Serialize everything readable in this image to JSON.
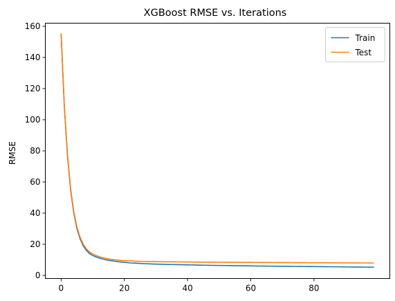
{
  "chart_data": {
    "type": "line",
    "title": "XGBoost RMSE vs. Iterations",
    "xlabel": "",
    "ylabel": "RMSE",
    "xlim": [
      -5,
      104
    ],
    "ylim": [
      -2,
      162
    ],
    "x_ticks": [
      0,
      20,
      40,
      60,
      80
    ],
    "y_ticks": [
      0,
      20,
      40,
      60,
      80,
      100,
      120,
      140,
      160
    ],
    "grid": false,
    "legend_position": "top-right",
    "colors": {
      "Train": "#1f77b4",
      "Test": "#ff7f0e"
    },
    "x": [
      0,
      1,
      2,
      3,
      4,
      5,
      6,
      7,
      8,
      9,
      10,
      11,
      12,
      13,
      14,
      15,
      16,
      17,
      18,
      19,
      20,
      21,
      22,
      23,
      24,
      25,
      26,
      27,
      28,
      29,
      30,
      31,
      32,
      33,
      34,
      35,
      36,
      37,
      38,
      39,
      40,
      41,
      42,
      43,
      44,
      45,
      46,
      47,
      48,
      49,
      50,
      51,
      52,
      53,
      54,
      55,
      56,
      57,
      58,
      59,
      60,
      61,
      62,
      63,
      64,
      65,
      66,
      67,
      68,
      69,
      70,
      71,
      72,
      73,
      74,
      75,
      76,
      77,
      78,
      79,
      80,
      81,
      82,
      83,
      84,
      85,
      86,
      87,
      88,
      89,
      90,
      91,
      92,
      93,
      94,
      95,
      96,
      97,
      98,
      99
    ],
    "series": [
      {
        "name": "Train",
        "values": [
          155.0,
          109.0,
          77.0,
          55.0,
          40.0,
          30.0,
          23.5,
          19.0,
          16.0,
          14.0,
          12.8,
          11.9,
          11.2,
          10.6,
          10.1,
          9.7,
          9.4,
          9.1,
          8.8,
          8.6,
          8.4,
          8.2,
          8.0,
          7.9,
          7.8,
          7.7,
          7.6,
          7.5,
          7.4,
          7.3,
          7.25,
          7.2,
          7.15,
          7.1,
          7.05,
          7.0,
          6.95,
          6.9,
          6.85,
          6.8,
          6.76,
          6.72,
          6.68,
          6.64,
          6.6,
          6.56,
          6.52,
          6.48,
          6.45,
          6.42,
          6.39,
          6.36,
          6.33,
          6.3,
          6.27,
          6.24,
          6.21,
          6.18,
          6.15,
          6.12,
          6.09,
          6.06,
          6.03,
          6.0,
          5.98,
          5.96,
          5.94,
          5.92,
          5.9,
          5.88,
          5.86,
          5.84,
          5.82,
          5.8,
          5.78,
          5.76,
          5.74,
          5.72,
          5.7,
          5.68,
          5.66,
          5.64,
          5.62,
          5.6,
          5.58,
          5.56,
          5.54,
          5.52,
          5.5,
          5.48,
          5.46,
          5.44,
          5.42,
          5.4,
          5.38,
          5.36,
          5.34,
          5.32,
          5.3,
          5.28
        ]
      },
      {
        "name": "Test",
        "values": [
          155.5,
          110.0,
          78.0,
          56.0,
          41.0,
          31.0,
          24.5,
          20.0,
          17.0,
          15.0,
          13.8,
          12.8,
          12.1,
          11.5,
          11.0,
          10.6,
          10.3,
          10.0,
          9.8,
          9.6,
          9.5,
          9.4,
          9.3,
          9.2,
          9.1,
          9.05,
          9.0,
          8.95,
          8.9,
          8.85,
          8.82,
          8.79,
          8.76,
          8.74,
          8.72,
          8.7,
          8.68,
          8.66,
          8.64,
          8.62,
          8.6,
          8.58,
          8.56,
          8.54,
          8.52,
          8.5,
          8.49,
          8.48,
          8.47,
          8.46,
          8.45,
          8.44,
          8.43,
          8.42,
          8.41,
          8.4,
          8.39,
          8.38,
          8.37,
          8.36,
          8.35,
          8.34,
          8.33,
          8.32,
          8.31,
          8.3,
          8.29,
          8.28,
          8.27,
          8.26,
          8.25,
          8.24,
          8.23,
          8.22,
          8.21,
          8.2,
          8.19,
          8.18,
          8.17,
          8.16,
          8.15,
          8.14,
          8.13,
          8.12,
          8.11,
          8.1,
          8.09,
          8.08,
          8.07,
          8.06,
          8.05,
          8.04,
          8.03,
          8.02,
          8.01,
          8.0,
          8.0,
          8.0,
          8.0,
          8.0
        ]
      }
    ]
  }
}
